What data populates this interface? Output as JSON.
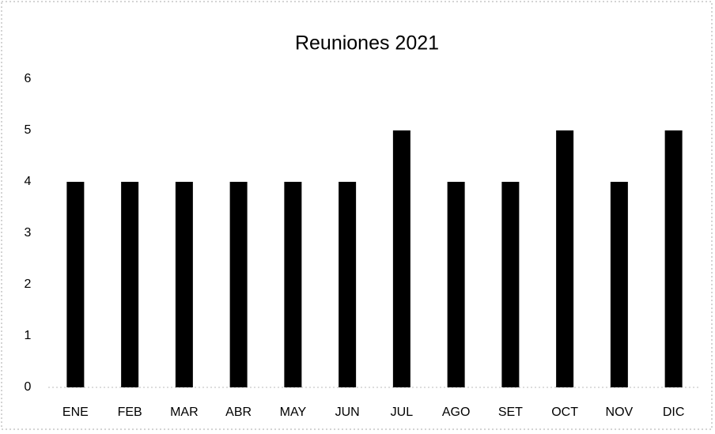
{
  "chart_data": {
    "type": "bar",
    "title": "Reuniones 2021",
    "categories": [
      "ENE",
      "FEB",
      "MAR",
      "ABR",
      "MAY",
      "JUN",
      "JUL",
      "AGO",
      "SET",
      "OCT",
      "NOV",
      "DIC"
    ],
    "values": [
      4,
      4,
      4,
      4,
      4,
      4,
      5,
      4,
      4,
      5,
      4,
      5
    ],
    "color": "#000000",
    "ylim": [
      0,
      6
    ],
    "yticks": [
      0,
      1,
      2,
      3,
      4,
      5,
      6
    ],
    "grid": false
  }
}
